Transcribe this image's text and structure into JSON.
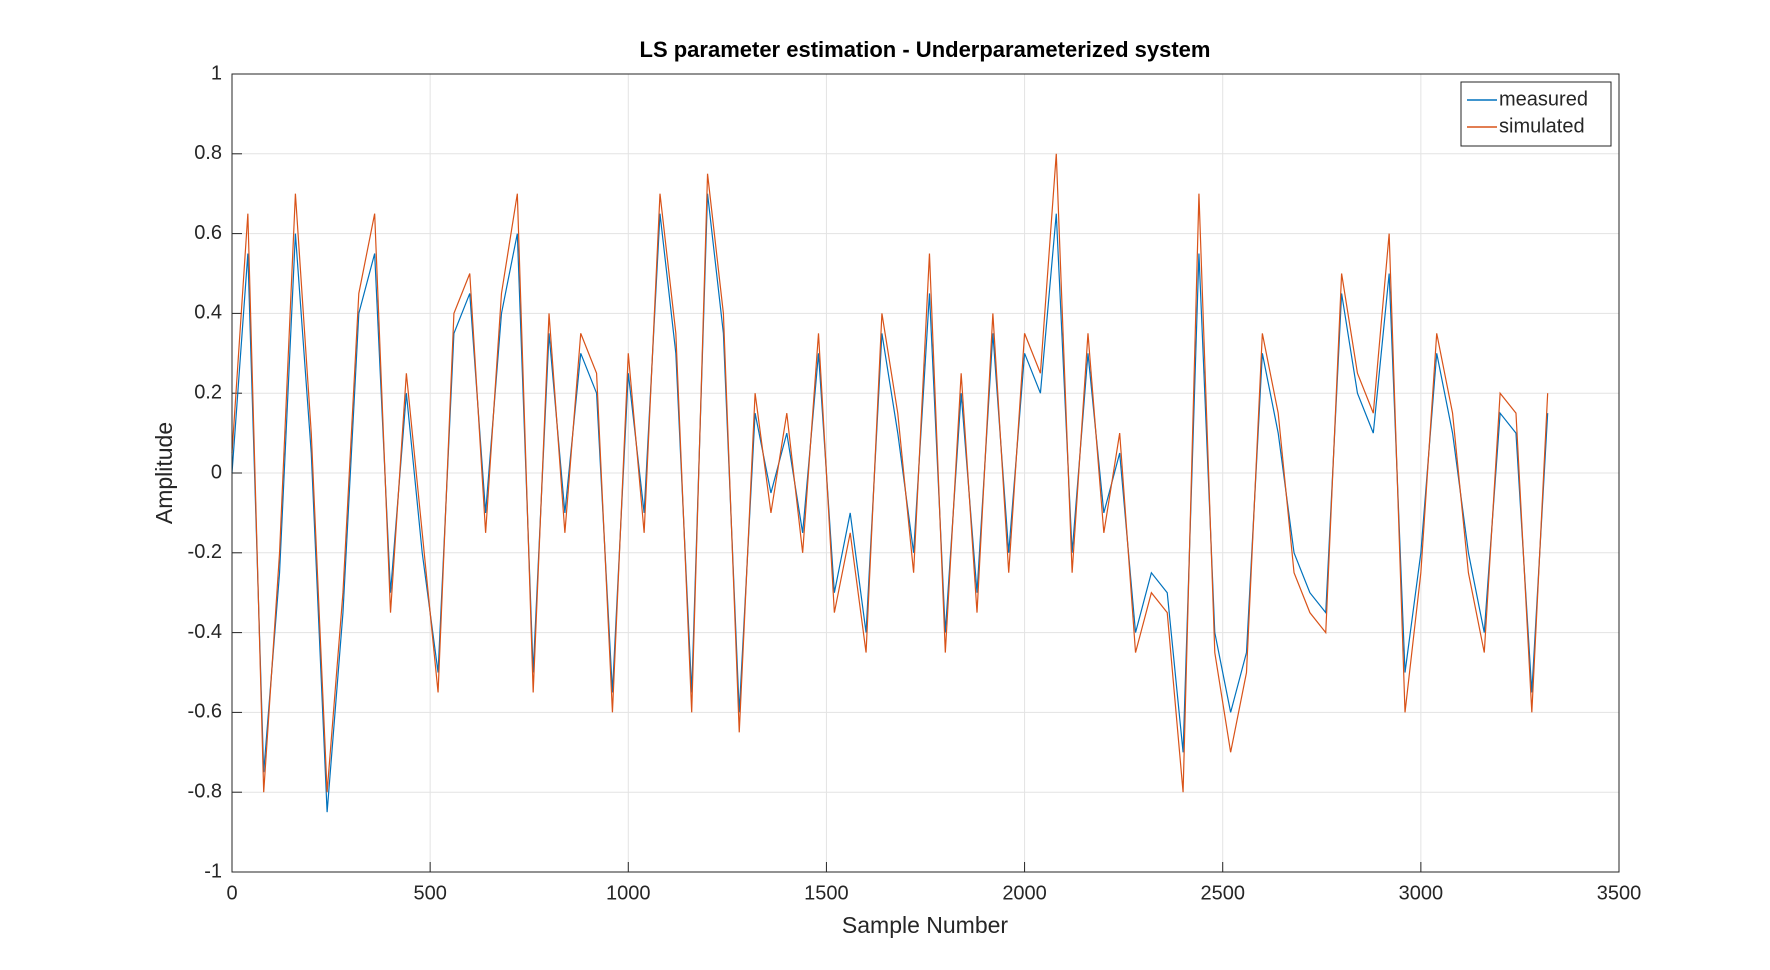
{
  "chart_data": {
    "type": "line",
    "title": "LS parameter estimation - Underparameterized system",
    "xlabel": "Sample Number",
    "ylabel": "Amplitude",
    "x": [
      0,
      40,
      80,
      120,
      160,
      200,
      240,
      280,
      320,
      360,
      400,
      440,
      480,
      520,
      560,
      600,
      640,
      680,
      720,
      760,
      800,
      840,
      880,
      920,
      960,
      1000,
      1040,
      1080,
      1120,
      1160,
      1200,
      1240,
      1280,
      1320,
      1360,
      1400,
      1440,
      1480,
      1520,
      1560,
      1600,
      1640,
      1680,
      1720,
      1760,
      1800,
      1840,
      1880,
      1920,
      1960,
      2000,
      2040,
      2080,
      2120,
      2160,
      2200,
      2240,
      2280,
      2320,
      2360,
      2400,
      2440,
      2480,
      2520,
      2560,
      2600,
      2640,
      2680,
      2720,
      2760,
      2800,
      2840,
      2880,
      2920,
      2960,
      3000,
      3040,
      3080,
      3120,
      3160,
      3200,
      3240,
      3280,
      3320
    ],
    "series": [
      {
        "name": "measured",
        "color": "#0072bd",
        "values": [
          0.0,
          0.55,
          -0.75,
          -0.25,
          0.6,
          0.05,
          -0.85,
          -0.35,
          0.4,
          0.55,
          -0.3,
          0.2,
          -0.2,
          -0.5,
          0.35,
          0.45,
          -0.1,
          0.4,
          0.6,
          -0.5,
          0.35,
          -0.1,
          0.3,
          0.2,
          -0.55,
          0.25,
          -0.1,
          0.65,
          0.3,
          -0.55,
          0.7,
          0.35,
          -0.6,
          0.15,
          -0.05,
          0.1,
          -0.15,
          0.3,
          -0.3,
          -0.1,
          -0.4,
          0.35,
          0.1,
          -0.2,
          0.45,
          -0.4,
          0.2,
          -0.3,
          0.35,
          -0.2,
          0.3,
          0.2,
          0.65,
          -0.2,
          0.3,
          -0.1,
          0.05,
          -0.4,
          -0.25,
          -0.3,
          -0.7,
          0.55,
          -0.4,
          -0.6,
          -0.45,
          0.3,
          0.1,
          -0.2,
          -0.3,
          -0.35,
          0.45,
          0.2,
          0.1,
          0.5,
          -0.5,
          -0.2,
          0.3,
          0.1,
          -0.2,
          -0.4,
          0.15,
          0.1,
          -0.55,
          0.15
        ]
      },
      {
        "name": "simulated",
        "color": "#d95319",
        "values": [
          0.05,
          0.65,
          -0.8,
          -0.2,
          0.7,
          0.1,
          -0.8,
          -0.3,
          0.45,
          0.65,
          -0.35,
          0.25,
          -0.15,
          -0.55,
          0.4,
          0.5,
          -0.15,
          0.45,
          0.7,
          -0.55,
          0.4,
          -0.15,
          0.35,
          0.25,
          -0.6,
          0.3,
          -0.15,
          0.7,
          0.35,
          -0.6,
          0.75,
          0.4,
          -0.65,
          0.2,
          -0.1,
          0.15,
          -0.2,
          0.35,
          -0.35,
          -0.15,
          -0.45,
          0.4,
          0.15,
          -0.25,
          0.55,
          -0.45,
          0.25,
          -0.35,
          0.4,
          -0.25,
          0.35,
          0.25,
          0.8,
          -0.25,
          0.35,
          -0.15,
          0.1,
          -0.45,
          -0.3,
          -0.35,
          -0.8,
          0.7,
          -0.45,
          -0.7,
          -0.5,
          0.35,
          0.15,
          -0.25,
          -0.35,
          -0.4,
          0.5,
          0.25,
          0.15,
          0.6,
          -0.6,
          -0.25,
          0.35,
          0.15,
          -0.25,
          -0.45,
          0.2,
          0.15,
          -0.6,
          0.2
        ]
      }
    ],
    "xlim": [
      0,
      3500
    ],
    "xticks": [
      0,
      500,
      1000,
      1500,
      2000,
      2500,
      3000,
      3500
    ],
    "ylim": [
      -1,
      1
    ],
    "yticks": [
      -1,
      -0.8,
      -0.6,
      -0.4,
      -0.2,
      0,
      0.2,
      0.4,
      0.6,
      0.8,
      1
    ],
    "grid": true,
    "legend": "top-right"
  }
}
